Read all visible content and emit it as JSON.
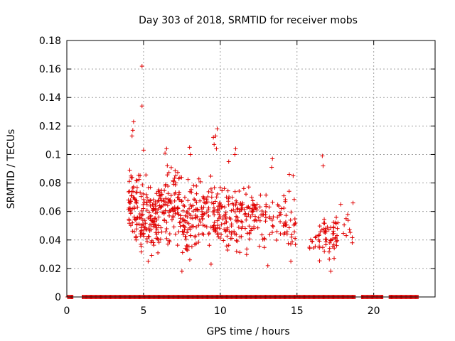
{
  "chart_data": {
    "type": "scatter",
    "title": "Day 303 of 2018, SRMTID for receiver mobs",
    "xlabel": "GPS time / hours",
    "ylabel": "SRMTID / TECUs",
    "xlim": [
      0,
      24
    ],
    "ylim": [
      0,
      0.18
    ],
    "xticks": [
      0,
      5,
      10,
      15,
      20
    ],
    "yticks": [
      0,
      0.02,
      0.04,
      0.06,
      0.08,
      0.1,
      0.12,
      0.14,
      0.16,
      0.18
    ],
    "ytick_labels": [
      "0",
      "0.02",
      "0.04",
      "0.06",
      "0.08",
      "0.1",
      "0.12",
      "0.14",
      "0.16",
      "0.18"
    ],
    "xtick_labels": [
      "0",
      "5",
      "10",
      "15",
      "20"
    ],
    "grid": true,
    "color": "#e00000",
    "marker": "plus",
    "zero_baseline": {
      "y": 0,
      "x_ranges": [
        [
          0.05,
          0.4
        ],
        [
          1.0,
          18.8
        ],
        [
          19.2,
          20.6
        ],
        [
          21.0,
          22.9
        ]
      ],
      "step": 0.05
    },
    "clusters": [
      {
        "x_range": [
          4.0,
          4.8
        ],
        "y_range": [
          0.03,
          0.095
        ],
        "count": 70
      },
      {
        "x_range": [
          4.8,
          6.0
        ],
        "y_range": [
          0.023,
          0.09
        ],
        "count": 110
      },
      {
        "x_range": [
          6.0,
          7.5
        ],
        "y_range": [
          0.03,
          0.1
        ],
        "count": 110
      },
      {
        "x_range": [
          7.5,
          8.6
        ],
        "y_range": [
          0.02,
          0.09
        ],
        "count": 80
      },
      {
        "x_range": [
          8.6,
          10.6
        ],
        "y_range": [
          0.025,
          0.09
        ],
        "count": 120
      },
      {
        "x_range": [
          10.6,
          12.6
        ],
        "y_range": [
          0.025,
          0.085
        ],
        "count": 100
      },
      {
        "x_range": [
          12.6,
          14.9
        ],
        "y_range": [
          0.025,
          0.085
        ],
        "count": 70
      },
      {
        "x_range": [
          15.8,
          16.4
        ],
        "y_range": [
          0.03,
          0.05
        ],
        "count": 10
      },
      {
        "x_range": [
          16.4,
          17.7
        ],
        "y_range": [
          0.018,
          0.065
        ],
        "count": 55
      },
      {
        "x_range": [
          17.9,
          18.7
        ],
        "y_range": [
          0.03,
          0.065
        ],
        "count": 8
      }
    ],
    "points": [
      {
        "x": 4.9,
        "y": 0.162
      },
      {
        "x": 4.9,
        "y": 0.134
      },
      {
        "x": 4.35,
        "y": 0.123
      },
      {
        "x": 4.3,
        "y": 0.117
      },
      {
        "x": 4.25,
        "y": 0.113
      },
      {
        "x": 9.8,
        "y": 0.118
      },
      {
        "x": 9.7,
        "y": 0.113
      },
      {
        "x": 9.55,
        "y": 0.112
      },
      {
        "x": 9.6,
        "y": 0.107
      },
      {
        "x": 9.75,
        "y": 0.104
      },
      {
        "x": 11.0,
        "y": 0.104
      },
      {
        "x": 10.95,
        "y": 0.1
      },
      {
        "x": 5.0,
        "y": 0.103
      },
      {
        "x": 6.5,
        "y": 0.104
      },
      {
        "x": 6.4,
        "y": 0.101
      },
      {
        "x": 8.0,
        "y": 0.105
      },
      {
        "x": 8.05,
        "y": 0.1
      },
      {
        "x": 16.65,
        "y": 0.099
      },
      {
        "x": 16.7,
        "y": 0.092
      },
      {
        "x": 13.4,
        "y": 0.097
      },
      {
        "x": 13.35,
        "y": 0.091
      },
      {
        "x": 10.55,
        "y": 0.095
      },
      {
        "x": 4.1,
        "y": 0.089
      },
      {
        "x": 14.75,
        "y": 0.085
      },
      {
        "x": 14.5,
        "y": 0.086
      },
      {
        "x": 18.65,
        "y": 0.066
      },
      {
        "x": 18.6,
        "y": 0.038
      },
      {
        "x": 18.2,
        "y": 0.055
      },
      {
        "x": 17.85,
        "y": 0.065
      },
      {
        "x": 14.6,
        "y": 0.025
      },
      {
        "x": 13.1,
        "y": 0.022
      },
      {
        "x": 7.5,
        "y": 0.018
      },
      {
        "x": 17.2,
        "y": 0.018
      },
      {
        "x": 5.3,
        "y": 0.025
      },
      {
        "x": 9.4,
        "y": 0.023
      }
    ]
  }
}
